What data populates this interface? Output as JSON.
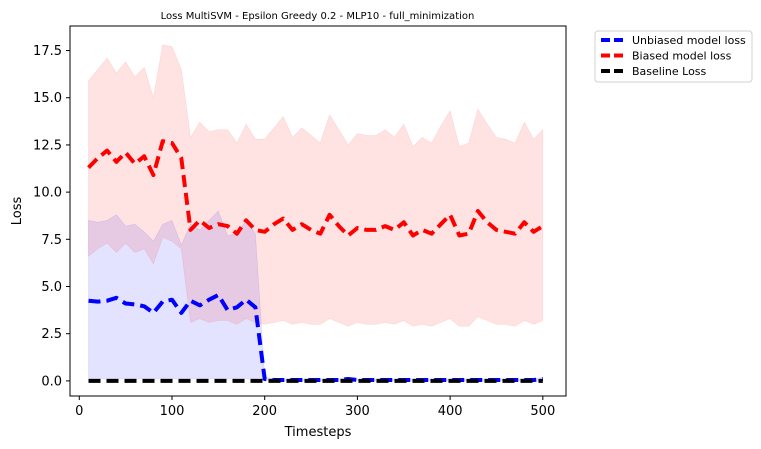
{
  "chart_data": {
    "type": "line",
    "title": "Loss MultiSVM - Epsilon Greedy 0.2 - MLP10 - full_minimization",
    "xlabel": "Timesteps",
    "ylabel": "Loss",
    "xlim": [
      -10,
      525
    ],
    "ylim": [
      -0.8,
      18.8
    ],
    "xticks": [
      0,
      100,
      200,
      300,
      400,
      500
    ],
    "yticks": [
      0.0,
      2.5,
      5.0,
      7.5,
      10.0,
      12.5,
      15.0,
      17.5
    ],
    "xtick_labels": [
      "0",
      "100",
      "200",
      "300",
      "400",
      "500"
    ],
    "ytick_labels": [
      "0.0",
      "2.5",
      "5.0",
      "7.5",
      "10.0",
      "12.5",
      "15.0",
      "17.5"
    ],
    "legend_position": "outside-top-right",
    "grid": false,
    "x": [
      10,
      20,
      30,
      40,
      50,
      60,
      70,
      80,
      90,
      100,
      110,
      120,
      130,
      140,
      150,
      160,
      170,
      180,
      190,
      200,
      210,
      220,
      230,
      240,
      250,
      260,
      270,
      280,
      290,
      300,
      310,
      320,
      330,
      340,
      350,
      360,
      370,
      380,
      390,
      400,
      410,
      420,
      430,
      440,
      450,
      460,
      470,
      480,
      490,
      500
    ],
    "series": [
      {
        "name": "Unbiased model loss",
        "color": "#0000ff",
        "values": [
          4.25,
          4.2,
          4.25,
          4.4,
          4.1,
          4.05,
          3.95,
          3.6,
          4.2,
          4.3,
          3.6,
          4.25,
          4.0,
          4.3,
          4.55,
          3.75,
          3.9,
          4.3,
          3.9,
          0.1,
          0.05,
          0.05,
          0.05,
          0.05,
          0.05,
          0.05,
          0.05,
          0.05,
          0.1,
          0.05,
          0.05,
          0.05,
          0.05,
          0.05,
          0.05,
          0.05,
          0.05,
          0.05,
          0.05,
          0.05,
          0.05,
          0.05,
          0.05,
          0.05,
          0.05,
          0.05,
          0.05,
          0.05,
          0.05,
          0.1
        ],
        "lower": [
          0.1,
          0.1,
          0.1,
          0.1,
          0.1,
          0.1,
          0.1,
          0.1,
          0.1,
          0.1,
          0.1,
          0.1,
          0.1,
          0.1,
          0.1,
          0.1,
          0.1,
          0.1,
          0.1,
          0.05,
          0.0,
          0.0,
          0.0,
          0.0,
          0.0,
          0.0,
          0.0,
          0.0,
          0.0,
          0.0,
          0.0,
          0.0,
          0.0,
          0.0,
          0.0,
          0.0,
          0.0,
          0.0,
          0.0,
          0.0,
          0.0,
          0.0,
          0.0,
          0.0,
          0.0,
          0.0,
          0.0,
          0.0,
          0.0,
          0.0
        ],
        "upper": [
          8.5,
          8.4,
          8.5,
          8.8,
          8.2,
          8.3,
          7.9,
          7.4,
          8.3,
          8.5,
          7.2,
          8.3,
          8.0,
          8.5,
          9.0,
          7.7,
          7.8,
          8.5,
          7.8,
          0.2,
          0.1,
          0.1,
          0.1,
          0.1,
          0.1,
          0.1,
          0.1,
          0.1,
          0.2,
          0.1,
          0.1,
          0.1,
          0.1,
          0.1,
          0.1,
          0.1,
          0.1,
          0.1,
          0.1,
          0.1,
          0.1,
          0.1,
          0.1,
          0.1,
          0.1,
          0.1,
          0.1,
          0.1,
          0.1,
          0.2
        ]
      },
      {
        "name": "Biased model loss",
        "color": "#ff0000",
        "values": [
          11.3,
          11.8,
          12.2,
          11.6,
          12.1,
          11.5,
          11.9,
          10.9,
          12.7,
          12.6,
          11.8,
          8.0,
          8.5,
          8.1,
          8.3,
          8.2,
          7.8,
          8.5,
          8.0,
          7.9,
          8.3,
          8.6,
          8.0,
          8.3,
          8.0,
          7.8,
          8.8,
          8.2,
          7.7,
          8.1,
          8.0,
          8.0,
          8.2,
          8.0,
          8.4,
          7.7,
          8.0,
          7.8,
          8.3,
          8.8,
          7.7,
          7.8,
          9.0,
          8.4,
          8.0,
          7.9,
          7.8,
          8.4,
          7.9,
          8.2
        ],
        "lower": [
          6.6,
          7.0,
          7.3,
          6.8,
          7.3,
          6.8,
          7.0,
          6.2,
          7.6,
          7.4,
          7.0,
          3.1,
          3.3,
          3.1,
          3.2,
          3.2,
          3.0,
          3.3,
          3.1,
          3.0,
          3.1,
          3.2,
          3.0,
          3.1,
          3.0,
          3.0,
          3.3,
          3.1,
          2.9,
          3.1,
          3.0,
          3.0,
          3.1,
          3.0,
          3.2,
          2.9,
          3.0,
          2.9,
          3.1,
          3.3,
          2.9,
          2.9,
          3.4,
          3.2,
          3.0,
          3.0,
          2.9,
          3.2,
          3.0,
          3.2
        ],
        "upper": [
          15.9,
          16.5,
          17.1,
          16.3,
          16.9,
          16.1,
          16.6,
          15.0,
          17.8,
          17.7,
          16.5,
          12.9,
          13.7,
          13.2,
          13.3,
          13.3,
          12.6,
          13.6,
          12.8,
          12.8,
          13.4,
          14.0,
          12.9,
          13.4,
          13.0,
          12.6,
          14.1,
          13.3,
          12.5,
          13.1,
          13.0,
          13.0,
          13.3,
          12.9,
          13.6,
          12.4,
          12.9,
          12.6,
          13.5,
          14.3,
          12.4,
          12.6,
          14.4,
          13.6,
          12.9,
          12.8,
          12.6,
          13.7,
          12.8,
          13.3
        ]
      },
      {
        "name": "Baseline Loss",
        "color": "#000000",
        "values": [
          0,
          0,
          0,
          0,
          0,
          0,
          0,
          0,
          0,
          0,
          0,
          0,
          0,
          0,
          0,
          0,
          0,
          0,
          0,
          0,
          0,
          0,
          0,
          0,
          0,
          0,
          0,
          0,
          0,
          0,
          0,
          0,
          0,
          0,
          0,
          0,
          0,
          0,
          0,
          0,
          0,
          0,
          0,
          0,
          0,
          0,
          0,
          0,
          0,
          0
        ]
      }
    ]
  }
}
